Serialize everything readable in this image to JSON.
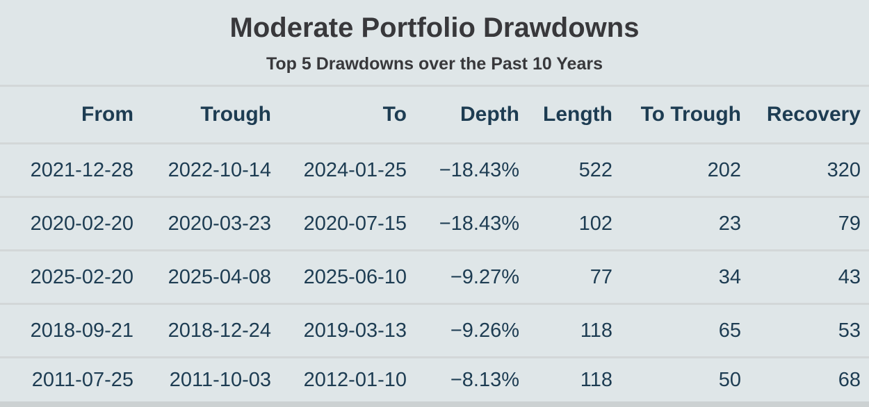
{
  "chart_data": {
    "type": "table",
    "title": "Moderate Portfolio Drawdowns",
    "subtitle": "Top 5 Drawdowns over the Past 10 Years",
    "columns": [
      "From",
      "Trough",
      "To",
      "Depth",
      "Length",
      "To Trough",
      "Recovery"
    ],
    "rows": [
      [
        "2021-12-28",
        "2022-10-14",
        "2024-01-25",
        "−18.43%",
        "522",
        "202",
        "320"
      ],
      [
        "2020-02-20",
        "2020-03-23",
        "2020-07-15",
        "−18.43%",
        "102",
        "23",
        "79"
      ],
      [
        "2025-02-20",
        "2025-04-08",
        "2025-06-10",
        "−9.27%",
        "77",
        "34",
        "43"
      ],
      [
        "2018-09-21",
        "2018-12-24",
        "2019-03-13",
        "−9.26%",
        "118",
        "65",
        "53"
      ],
      [
        "2011-07-25",
        "2011-10-03",
        "2012-01-10",
        "−8.13%",
        "118",
        "50",
        "68"
      ]
    ],
    "layout": {
      "column_alignment": "right",
      "gridlines": "horizontal-only",
      "background_color": "#dfe6e8",
      "divider_color": "#d3d7d8",
      "text_color": "#1d3c52",
      "heading_color": "#38383b"
    }
  }
}
